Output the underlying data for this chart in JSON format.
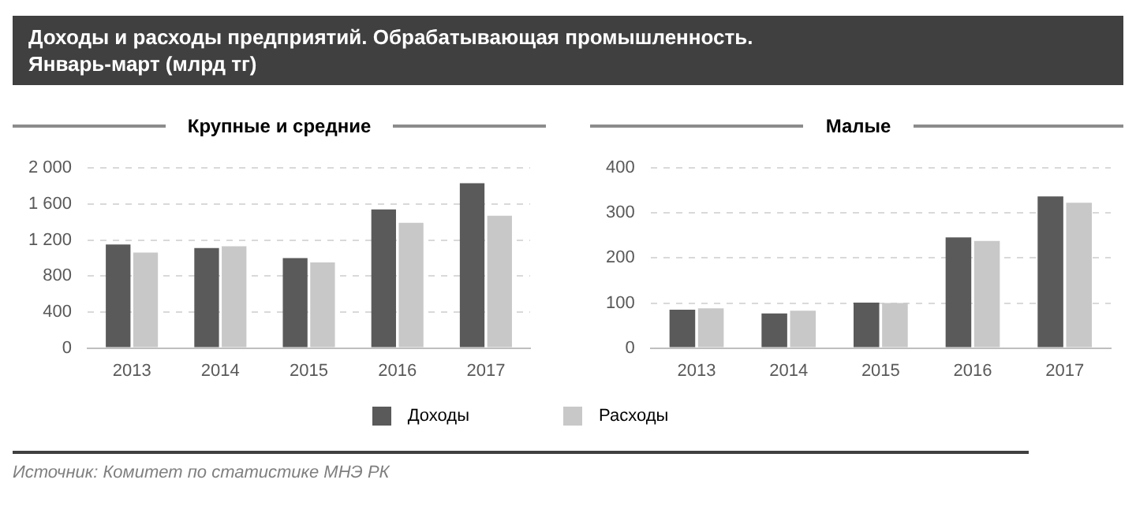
{
  "chart_data": [
    {
      "type": "bar",
      "title": "Доходы и расходы предприятий. Обрабатывающая промышленность. Январь-март (млрд тг)",
      "subtitle": "Крупные и средние",
      "categories": [
        "2013",
        "2014",
        "2015",
        "2016",
        "2017"
      ],
      "series": [
        {
          "name": "Доходы",
          "color": "#5a5a5a",
          "values": [
            1150,
            1110,
            1000,
            1540,
            1830
          ]
        },
        {
          "name": "Расходы",
          "color": "#c8c8c8",
          "values": [
            1060,
            1130,
            950,
            1390,
            1470
          ]
        }
      ],
      "ylim": [
        0,
        2000
      ],
      "yticks": [
        0,
        400,
        800,
        {
          "value": 1200,
          "label": "1 200"
        },
        {
          "value": 1600,
          "label": "1 600"
        },
        {
          "value": 2000,
          "label": "2 000"
        }
      ],
      "grid": "y",
      "legend": "bottom",
      "annotations": [
        "Источник:  Комитет по статистике МНЭ РК"
      ]
    },
    {
      "type": "bar",
      "subtitle": "Малые",
      "categories": [
        "2013",
        "2014",
        "2015",
        "2016",
        "2017"
      ],
      "series": [
        {
          "color": "#5a5a5a",
          "values": [
            85,
            77,
            101,
            246,
            337
          ]
        },
        {
          "color": "#c8c8c8",
          "values": [
            88,
            83,
            100,
            238,
            323
          ]
        }
      ],
      "ylim": [
        0,
        400
      ],
      "yticks": [
        0,
        100,
        200,
        300,
        400
      ],
      "grid": "y"
    }
  ]
}
